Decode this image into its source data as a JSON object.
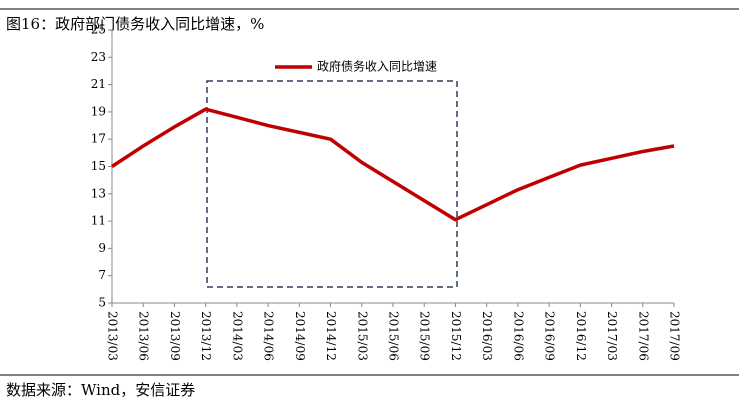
{
  "chart_data": {
    "type": "line",
    "title": "图16：政府部门债务收入同比增速，%",
    "source": "数据来源：Wind，安信证券",
    "categories": [
      "2013/03",
      "2013/06",
      "2013/09",
      "2013/12",
      "2014/03",
      "2014/06",
      "2014/09",
      "2014/12",
      "2015/03",
      "2015/06",
      "2015/09",
      "2015/12",
      "2016/03",
      "2016/06",
      "2016/09",
      "2016/12",
      "2017/03",
      "2017/06",
      "2017/09"
    ],
    "series": [
      {
        "name": "政府债务收入同比增速",
        "color": "#c00000",
        "values": [
          15.0,
          16.5,
          17.9,
          19.2,
          18.6,
          18.0,
          17.5,
          17.0,
          15.3,
          13.9,
          12.5,
          11.1,
          12.2,
          13.3,
          14.2,
          15.1,
          15.6,
          16.1,
          16.5
        ]
      }
    ],
    "ylim": [
      5,
      25
    ],
    "yticks": [
      5,
      7,
      9,
      11,
      13,
      15,
      17,
      19,
      21,
      23,
      25
    ],
    "grid": false
  }
}
